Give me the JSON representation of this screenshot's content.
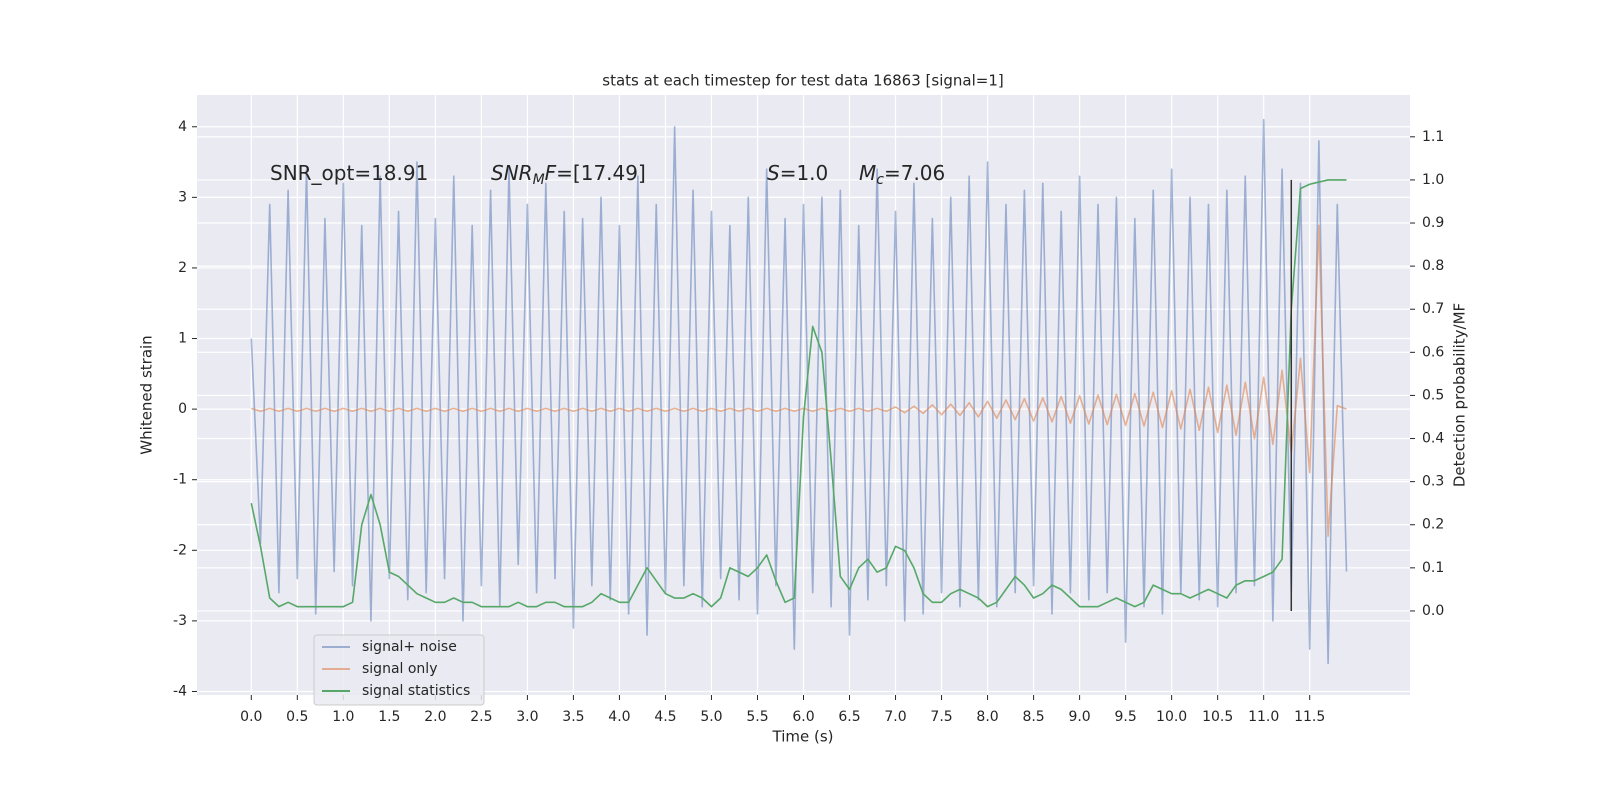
{
  "chart_data": {
    "type": "line",
    "title": "stats at each timestep for test data 16863 [signal=1]",
    "xlabel": "Time (s)",
    "ylabel": "Whitened strain",
    "y2label": "Detection probability/MF",
    "x": [
      0,
      0.1,
      0.2,
      0.3,
      0.4,
      0.5,
      0.6,
      0.7,
      0.8,
      0.9,
      1,
      1.1,
      1.2,
      1.3,
      1.4,
      1.5,
      1.6,
      1.7,
      1.8,
      1.9,
      2,
      2.1,
      2.2,
      2.3,
      2.4,
      2.5,
      2.6,
      2.7,
      2.8,
      2.9,
      3,
      3.1,
      3.2,
      3.3,
      3.4,
      3.5,
      3.6,
      3.7,
      3.8,
      3.9,
      4,
      4.1,
      4.2,
      4.3,
      4.4,
      4.5,
      4.6,
      4.7,
      4.8,
      4.9,
      5,
      5.1,
      5.2,
      5.3,
      5.4,
      5.5,
      5.6,
      5.7,
      5.8,
      5.9,
      6,
      6.1,
      6.2,
      6.3,
      6.4,
      6.5,
      6.6,
      6.7,
      6.8,
      6.9,
      7,
      7.1,
      7.2,
      7.3,
      7.4,
      7.5,
      7.6,
      7.7,
      7.8,
      7.9,
      8,
      8.1,
      8.2,
      8.3,
      8.4,
      8.5,
      8.6,
      8.7,
      8.8,
      8.9,
      9,
      9.1,
      9.2,
      9.3,
      9.4,
      9.5,
      9.6,
      9.7,
      9.8,
      9.9,
      10,
      10.1,
      10.2,
      10.3,
      10.4,
      10.5,
      10.6,
      10.7,
      10.8,
      10.9,
      11,
      11.1,
      11.2,
      11.3,
      11.4,
      11.5,
      11.6,
      11.7,
      11.8,
      11.9
    ],
    "series": [
      {
        "name": "signal+ noise",
        "color": "#4c72b0",
        "alpha": 0.5,
        "values": [
          1.0,
          -1.9,
          2.9,
          -2.6,
          3.1,
          -2.4,
          3.4,
          -2.9,
          2.7,
          -2.3,
          3.2,
          -2.5,
          2.6,
          -3.0,
          3.3,
          -2.4,
          2.8,
          -2.7,
          3.5,
          -2.6,
          2.7,
          -2.4,
          3.3,
          -3.0,
          2.6,
          -2.5,
          3.1,
          -2.8,
          3.4,
          -2.2,
          2.9,
          -2.6,
          3.2,
          -2.4,
          2.8,
          -3.1,
          2.7,
          -2.5,
          3.0,
          -2.7,
          2.6,
          -2.9,
          3.3,
          -3.2,
          2.9,
          -2.6,
          4.0,
          -2.5,
          3.1,
          -2.8,
          2.8,
          -2.4,
          2.6,
          -2.7,
          3.0,
          -2.9,
          3.4,
          -2.5,
          2.7,
          -3.4,
          2.9,
          -2.6,
          3.0,
          -2.8,
          3.1,
          -3.2,
          2.6,
          -2.7,
          3.4,
          -2.5,
          2.8,
          -3.0,
          3.2,
          -2.9,
          2.7,
          -2.6,
          3.0,
          -2.8,
          3.3,
          -2.7,
          3.5,
          -2.8,
          2.9,
          -2.6,
          3.1,
          -2.5,
          3.2,
          -2.9,
          2.8,
          -2.6,
          3.3,
          -2.7,
          2.9,
          -2.6,
          3.0,
          -3.3,
          2.7,
          -2.8,
          3.1,
          -2.9,
          3.4,
          -2.6,
          3.0,
          -2.7,
          2.9,
          -2.8,
          3.1,
          -2.6,
          3.3,
          -2.5,
          4.1,
          -3.0,
          3.4,
          -2.6,
          3.2,
          -3.4,
          3.8,
          -3.6,
          2.9,
          -2.3
        ]
      },
      {
        "name": "signal only",
        "color": "#dd8452",
        "alpha": 0.6,
        "values": [
          0.01,
          -0.03,
          0.01,
          -0.03,
          0.01,
          -0.03,
          0.01,
          -0.03,
          0.01,
          -0.03,
          0.01,
          -0.03,
          0.01,
          -0.03,
          0.01,
          -0.03,
          0.01,
          -0.03,
          0.01,
          -0.03,
          0.01,
          -0.03,
          0.01,
          -0.03,
          0.01,
          -0.03,
          0.01,
          -0.03,
          0.01,
          -0.03,
          0.01,
          -0.03,
          0.01,
          -0.03,
          0.01,
          -0.03,
          0.01,
          -0.03,
          0.01,
          -0.03,
          0.01,
          -0.03,
          0.01,
          -0.03,
          0.01,
          -0.03,
          0.01,
          -0.03,
          0.01,
          -0.03,
          0.01,
          -0.03,
          0.01,
          -0.03,
          0.01,
          -0.03,
          0.01,
          -0.03,
          0.01,
          -0.03,
          0.01,
          -0.03,
          0.01,
          -0.03,
          0.01,
          -0.03,
          0.01,
          -0.03,
          0.01,
          -0.03,
          0.03,
          -0.05,
          0.04,
          -0.06,
          0.06,
          -0.08,
          0.07,
          -0.09,
          0.09,
          -0.11,
          0.11,
          -0.13,
          0.13,
          -0.15,
          0.15,
          -0.17,
          0.16,
          -0.18,
          0.18,
          -0.2,
          0.19,
          -0.21,
          0.2,
          -0.22,
          0.21,
          -0.23,
          0.22,
          -0.24,
          0.24,
          -0.26,
          0.26,
          -0.28,
          0.28,
          -0.3,
          0.31,
          -0.33,
          0.34,
          -0.37,
          0.38,
          -0.42,
          0.45,
          -0.5,
          0.55,
          -0.62,
          0.72,
          -0.9,
          2.6,
          -1.8,
          0.05,
          0.0
        ]
      },
      {
        "name": "signal statistics",
        "color": "#55a868",
        "alpha": 1,
        "axis": "y2",
        "values": [
          0.25,
          0.15,
          0.03,
          0.01,
          0.02,
          0.01,
          0.01,
          0.01,
          0.01,
          0.01,
          0.01,
          0.02,
          0.2,
          0.27,
          0.2,
          0.09,
          0.08,
          0.06,
          0.04,
          0.03,
          0.02,
          0.02,
          0.03,
          0.02,
          0.02,
          0.01,
          0.01,
          0.01,
          0.01,
          0.02,
          0.01,
          0.01,
          0.02,
          0.02,
          0.01,
          0.01,
          0.01,
          0.02,
          0.04,
          0.03,
          0.02,
          0.02,
          0.06,
          0.1,
          0.07,
          0.04,
          0.03,
          0.03,
          0.04,
          0.03,
          0.01,
          0.03,
          0.1,
          0.09,
          0.08,
          0.1,
          0.13,
          0.07,
          0.02,
          0.03,
          0.45,
          0.66,
          0.6,
          0.35,
          0.08,
          0.05,
          0.1,
          0.12,
          0.09,
          0.1,
          0.15,
          0.14,
          0.1,
          0.04,
          0.02,
          0.02,
          0.04,
          0.05,
          0.04,
          0.03,
          0.01,
          0.02,
          0.05,
          0.08,
          0.06,
          0.03,
          0.04,
          0.06,
          0.05,
          0.03,
          0.01,
          0.01,
          0.01,
          0.02,
          0.03,
          0.02,
          0.01,
          0.02,
          0.06,
          0.05,
          0.04,
          0.04,
          0.03,
          0.04,
          0.05,
          0.04,
          0.03,
          0.06,
          0.07,
          0.07,
          0.08,
          0.09,
          0.12,
          0.7,
          0.98,
          0.99,
          0.995,
          1.0,
          1.0,
          1.0
        ]
      }
    ],
    "vline": {
      "x": 11.3,
      "ymin": 0,
      "ymax": 1,
      "axis": "y2",
      "color": "#333333"
    },
    "annotations": [
      [
        {
          "text": "SNR_opt=18.91"
        }
      ],
      [
        {
          "text": "SNR",
          "style": "italic"
        },
        {
          "text": "M",
          "style": "italic-sub"
        },
        {
          "text": "F",
          "style": "italic"
        },
        {
          "text": "=[17.49]"
        }
      ],
      [
        {
          "text": "S",
          "style": "italic"
        },
        {
          "text": "=1.0"
        }
      ],
      [
        {
          "text": "M",
          "style": "italic"
        },
        {
          "text": "c",
          "style": "italic-sub"
        },
        {
          "text": "=7.06"
        }
      ]
    ],
    "xlim": [
      -0.59,
      12.59
    ],
    "xticks": [
      {
        "value": 0,
        "label": "0.0"
      },
      0.5,
      {
        "value": 1,
        "label": "1.0"
      },
      1.5,
      {
        "value": 2,
        "label": "2.0"
      },
      2.5,
      {
        "value": 3,
        "label": "3.0"
      },
      3.5,
      {
        "value": 4,
        "label": "4.0"
      },
      4.5,
      {
        "value": 5,
        "label": "5.0"
      },
      5.5,
      {
        "value": 6,
        "label": "6.0"
      },
      6.5,
      {
        "value": 7,
        "label": "7.0"
      },
      7.5,
      {
        "value": 8,
        "label": "8.0"
      },
      8.5,
      {
        "value": 9,
        "label": "9.0"
      },
      9.5,
      {
        "value": 10,
        "label": "10.0"
      },
      10.5,
      {
        "value": 11,
        "label": "11.0"
      },
      11.5
    ],
    "ylim": [
      -4.05,
      4.45
    ],
    "yticks": [
      -4,
      -3,
      -2,
      -1,
      0,
      1,
      2,
      3,
      4
    ],
    "y2lim": [
      -0.195,
      1.197
    ],
    "y2ticks": [
      {
        "value": 0,
        "label": "0.0"
      },
      0.1,
      0.2,
      0.3,
      0.4,
      0.5,
      0.6,
      0.7,
      0.8,
      0.9,
      {
        "value": 1,
        "label": "1.0"
      },
      1.1
    ],
    "grid": true,
    "legend": "lower left"
  }
}
